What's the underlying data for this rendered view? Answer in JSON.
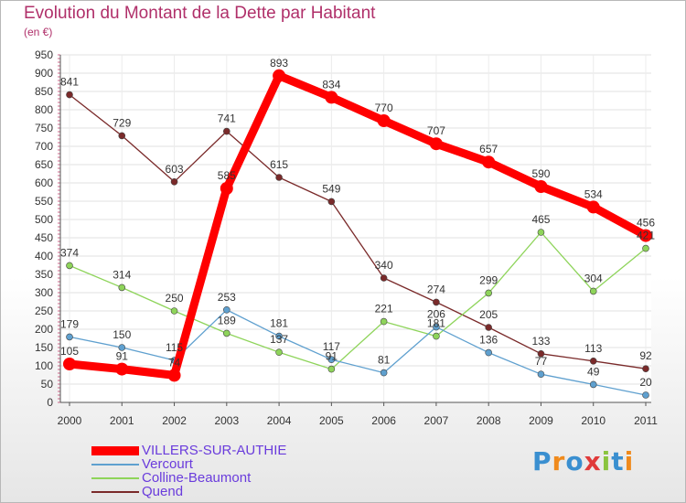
{
  "title": "Evolution du Montant de la Dette par Habitant",
  "unit_label": "(en €)",
  "logo_text": "Proxiti",
  "chart_data": {
    "type": "line",
    "title": "Evolution du Montant de la Dette par Habitant",
    "subtitle": "(en €)",
    "x": [
      "2000",
      "2001",
      "2002",
      "2003",
      "2004",
      "2005",
      "2006",
      "2007",
      "2008",
      "2009",
      "2010",
      "2011"
    ],
    "ylim": [
      0,
      950
    ],
    "yticks": [
      0,
      50,
      100,
      150,
      200,
      250,
      300,
      350,
      400,
      450,
      500,
      550,
      600,
      650,
      700,
      750,
      800,
      850,
      900,
      950
    ],
    "grid": true,
    "legend_position": "bottom-left",
    "series": [
      {
        "name": "VILLERS-SUR-AUTHIE",
        "color": "#ff0000",
        "values": [
          105,
          91,
          74,
          585,
          893,
          834,
          770,
          707,
          657,
          590,
          534,
          456
        ]
      },
      {
        "name": "Vercourt",
        "color": "#5fa0cf",
        "values": [
          179,
          150,
          115,
          253,
          181,
          117,
          81,
          206,
          136,
          77,
          49,
          20
        ]
      },
      {
        "name": "Colline-Beaumont",
        "color": "#8ed45a",
        "values": [
          374,
          314,
          250,
          189,
          137,
          91,
          221,
          181,
          299,
          465,
          304,
          421
        ]
      },
      {
        "name": "Quend",
        "color": "#7a2a2a",
        "values": [
          841,
          729,
          603,
          741,
          615,
          549,
          340,
          274,
          205,
          133,
          113,
          92
        ]
      }
    ],
    "data_labels": [
      [
        "105",
        "91",
        "74",
        "585",
        "893",
        "834",
        "770",
        "707",
        "657",
        "590",
        "534",
        "456"
      ],
      [
        "179",
        "150",
        "115",
        "253",
        "181",
        "117",
        "81",
        "206",
        "136",
        "77",
        "49",
        "20"
      ],
      [
        "374",
        "314",
        "250",
        "189",
        "137",
        "91",
        "221",
        "181",
        "299",
        "465",
        "304",
        "421"
      ],
      [
        "841",
        "729",
        "603",
        "741",
        "615",
        "549",
        "340",
        "274",
        "205",
        "133",
        "113",
        "92"
      ]
    ]
  }
}
